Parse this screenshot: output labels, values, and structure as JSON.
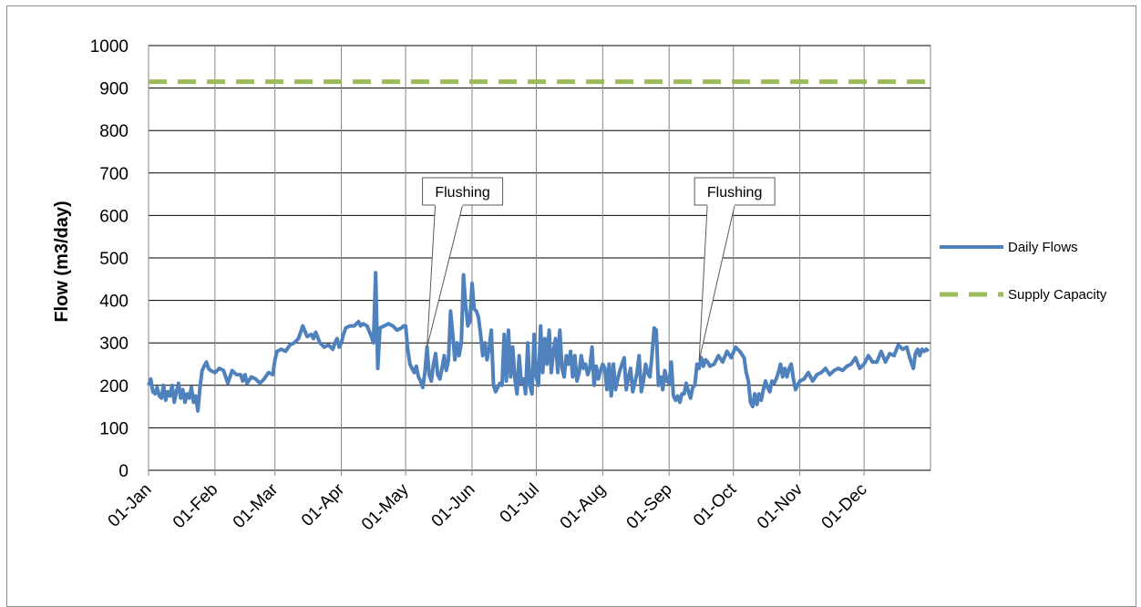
{
  "chart_data": {
    "type": "line",
    "title": "",
    "xlabel": "",
    "ylabel": "Flow (m3/day)",
    "ylim": [
      0,
      1000
    ],
    "yticks": [
      0,
      100,
      200,
      300,
      400,
      500,
      600,
      700,
      800,
      900,
      1000
    ],
    "xlim": [
      0,
      365
    ],
    "xticks": [
      {
        "day": 0,
        "label": "01-Jan"
      },
      {
        "day": 31,
        "label": "01-Feb"
      },
      {
        "day": 59,
        "label": "01-Mar"
      },
      {
        "day": 90,
        "label": "01-Apr"
      },
      {
        "day": 120,
        "label": "01-May"
      },
      {
        "day": 151,
        "label": "01-Jun"
      },
      {
        "day": 181,
        "label": "01-Jul"
      },
      {
        "day": 212,
        "label": "01-Aug"
      },
      {
        "day": 243,
        "label": "01-Sep"
      },
      {
        "day": 273,
        "label": "01-Oct"
      },
      {
        "day": 304,
        "label": "01-Nov"
      },
      {
        "day": 334,
        "label": "01-Dec"
      }
    ],
    "grid": true,
    "legend_position": "right",
    "series": [
      {
        "name": "Daily Flows",
        "color": "#4f81bd",
        "style": "solid",
        "points": [
          [
            0,
            200
          ],
          [
            1,
            215
          ],
          [
            2,
            185
          ],
          [
            3,
            180
          ],
          [
            4,
            195
          ],
          [
            5,
            175
          ],
          [
            6,
            170
          ],
          [
            7,
            200
          ],
          [
            8,
            165
          ],
          [
            9,
            185
          ],
          [
            10,
            175
          ],
          [
            11,
            200
          ],
          [
            12,
            160
          ],
          [
            13,
            185
          ],
          [
            14,
            205
          ],
          [
            15,
            170
          ],
          [
            16,
            190
          ],
          [
            17,
            160
          ],
          [
            18,
            180
          ],
          [
            19,
            170
          ],
          [
            20,
            195
          ],
          [
            21,
            160
          ],
          [
            22,
            175
          ],
          [
            23,
            140
          ],
          [
            24,
            195
          ],
          [
            25,
            235
          ],
          [
            26,
            245
          ],
          [
            27,
            255
          ],
          [
            28,
            240
          ],
          [
            29,
            235
          ],
          [
            31,
            230
          ],
          [
            33,
            240
          ],
          [
            35,
            235
          ],
          [
            37,
            205
          ],
          [
            39,
            235
          ],
          [
            41,
            225
          ],
          [
            43,
            225
          ],
          [
            44,
            210
          ],
          [
            45,
            225
          ],
          [
            46,
            205
          ],
          [
            48,
            220
          ],
          [
            50,
            215
          ],
          [
            52,
            205
          ],
          [
            54,
            215
          ],
          [
            56,
            230
          ],
          [
            58,
            225
          ],
          [
            59,
            260
          ],
          [
            60,
            280
          ],
          [
            62,
            285
          ],
          [
            64,
            280
          ],
          [
            66,
            295
          ],
          [
            68,
            300
          ],
          [
            70,
            310
          ],
          [
            72,
            340
          ],
          [
            74,
            315
          ],
          [
            76,
            320
          ],
          [
            77,
            310
          ],
          [
            78,
            325
          ],
          [
            80,
            300
          ],
          [
            82,
            290
          ],
          [
            84,
            295
          ],
          [
            86,
            285
          ],
          [
            87,
            300
          ],
          [
            88,
            310
          ],
          [
            89,
            290
          ],
          [
            90,
            300
          ],
          [
            91,
            320
          ],
          [
            92,
            335
          ],
          [
            94,
            340
          ],
          [
            96,
            340
          ],
          [
            98,
            350
          ],
          [
            99,
            340
          ],
          [
            100,
            345
          ],
          [
            102,
            340
          ],
          [
            104,
            315
          ],
          [
            105,
            300
          ],
          [
            106,
            465
          ],
          [
            107,
            240
          ],
          [
            108,
            335
          ],
          [
            110,
            340
          ],
          [
            112,
            345
          ],
          [
            114,
            340
          ],
          [
            116,
            330
          ],
          [
            118,
            335
          ],
          [
            119,
            340
          ],
          [
            120,
            340
          ],
          [
            121,
            285
          ],
          [
            122,
            250
          ],
          [
            123,
            240
          ],
          [
            124,
            230
          ],
          [
            125,
            245
          ],
          [
            126,
            220
          ],
          [
            127,
            210
          ],
          [
            128,
            195
          ],
          [
            129,
            230
          ],
          [
            130,
            290
          ],
          [
            131,
            225
          ],
          [
            132,
            210
          ],
          [
            133,
            250
          ],
          [
            134,
            275
          ],
          [
            135,
            225
          ],
          [
            136,
            215
          ],
          [
            137,
            240
          ],
          [
            138,
            270
          ],
          [
            139,
            235
          ],
          [
            140,
            260
          ],
          [
            141,
            375
          ],
          [
            142,
            320
          ],
          [
            143,
            260
          ],
          [
            144,
            300
          ],
          [
            145,
            270
          ],
          [
            146,
            300
          ],
          [
            147,
            460
          ],
          [
            148,
            390
          ],
          [
            149,
            340
          ],
          [
            150,
            350
          ],
          [
            151,
            440
          ],
          [
            152,
            380
          ],
          [
            153,
            375
          ],
          [
            154,
            360
          ],
          [
            155,
            320
          ],
          [
            156,
            270
          ],
          [
            157,
            300
          ],
          [
            158,
            260
          ],
          [
            159,
            290
          ],
          [
            160,
            330
          ],
          [
            161,
            200
          ],
          [
            162,
            185
          ],
          [
            163,
            195
          ],
          [
            164,
            205
          ],
          [
            165,
            200
          ],
          [
            166,
            320
          ],
          [
            167,
            210
          ],
          [
            168,
            330
          ],
          [
            169,
            220
          ],
          [
            170,
            290
          ],
          [
            171,
            215
          ],
          [
            172,
            180
          ],
          [
            173,
            270
          ],
          [
            174,
            205
          ],
          [
            175,
            215
          ],
          [
            176,
            180
          ],
          [
            177,
            300
          ],
          [
            178,
            200
          ],
          [
            179,
            180
          ],
          [
            180,
            320
          ],
          [
            181,
            220
          ],
          [
            182,
            200
          ],
          [
            183,
            340
          ],
          [
            184,
            230
          ],
          [
            185,
            310
          ],
          [
            186,
            250
          ],
          [
            187,
            330
          ],
          [
            188,
            230
          ],
          [
            189,
            280
          ],
          [
            190,
            310
          ],
          [
            191,
            230
          ],
          [
            192,
            330
          ],
          [
            193,
            240
          ],
          [
            194,
            220
          ],
          [
            195,
            270
          ],
          [
            196,
            250
          ],
          [
            197,
            280
          ],
          [
            198,
            220
          ],
          [
            199,
            270
          ],
          [
            200,
            210
          ],
          [
            201,
            230
          ],
          [
            202,
            270
          ],
          [
            203,
            240
          ],
          [
            204,
            250
          ],
          [
            205,
            225
          ],
          [
            206,
            240
          ],
          [
            207,
            290
          ],
          [
            208,
            200
          ],
          [
            209,
            245
          ],
          [
            210,
            215
          ],
          [
            211,
            235
          ],
          [
            212,
            250
          ],
          [
            213,
            240
          ],
          [
            214,
            190
          ],
          [
            215,
            250
          ],
          [
            216,
            175
          ],
          [
            217,
            250
          ],
          [
            218,
            190
          ],
          [
            219,
            215
          ],
          [
            220,
            235
          ],
          [
            221,
            250
          ],
          [
            222,
            265
          ],
          [
            223,
            190
          ],
          [
            224,
            220
          ],
          [
            225,
            240
          ],
          [
            226,
            185
          ],
          [
            227,
            205
          ],
          [
            228,
            230
          ],
          [
            229,
            270
          ],
          [
            230,
            185
          ],
          [
            231,
            210
          ],
          [
            232,
            250
          ],
          [
            233,
            230
          ],
          [
            234,
            220
          ],
          [
            235,
            270
          ],
          [
            236,
            335
          ],
          [
            237,
            330
          ],
          [
            238,
            200
          ],
          [
            239,
            220
          ],
          [
            240,
            190
          ],
          [
            241,
            235
          ],
          [
            242,
            210
          ],
          [
            243,
            205
          ],
          [
            244,
            255
          ],
          [
            245,
            175
          ],
          [
            246,
            165
          ],
          [
            247,
            175
          ],
          [
            248,
            160
          ],
          [
            249,
            180
          ],
          [
            250,
            180
          ],
          [
            251,
            205
          ],
          [
            252,
            185
          ],
          [
            253,
            170
          ],
          [
            254,
            195
          ],
          [
            255,
            200
          ],
          [
            256,
            250
          ],
          [
            257,
            240
          ],
          [
            258,
            265
          ],
          [
            259,
            245
          ],
          [
            260,
            260
          ],
          [
            261,
            255
          ],
          [
            262,
            245
          ],
          [
            264,
            250
          ],
          [
            266,
            270
          ],
          [
            268,
            255
          ],
          [
            270,
            280
          ],
          [
            272,
            265
          ],
          [
            274,
            290
          ],
          [
            276,
            280
          ],
          [
            278,
            265
          ],
          [
            279,
            230
          ],
          [
            280,
            210
          ],
          [
            281,
            160
          ],
          [
            282,
            150
          ],
          [
            283,
            180
          ],
          [
            284,
            155
          ],
          [
            285,
            180
          ],
          [
            286,
            165
          ],
          [
            287,
            190
          ],
          [
            288,
            210
          ],
          [
            289,
            195
          ],
          [
            290,
            185
          ],
          [
            291,
            210
          ],
          [
            292,
            205
          ],
          [
            293,
            215
          ],
          [
            294,
            230
          ],
          [
            295,
            250
          ],
          [
            296,
            220
          ],
          [
            297,
            240
          ],
          [
            298,
            220
          ],
          [
            299,
            240
          ],
          [
            300,
            250
          ],
          [
            301,
            215
          ],
          [
            302,
            190
          ],
          [
            304,
            210
          ],
          [
            306,
            215
          ],
          [
            308,
            230
          ],
          [
            310,
            210
          ],
          [
            312,
            225
          ],
          [
            314,
            230
          ],
          [
            316,
            240
          ],
          [
            318,
            225
          ],
          [
            320,
            235
          ],
          [
            322,
            240
          ],
          [
            324,
            235
          ],
          [
            326,
            245
          ],
          [
            328,
            250
          ],
          [
            330,
            265
          ],
          [
            332,
            240
          ],
          [
            334,
            250
          ],
          [
            336,
            270
          ],
          [
            338,
            255
          ],
          [
            340,
            255
          ],
          [
            342,
            280
          ],
          [
            344,
            255
          ],
          [
            346,
            275
          ],
          [
            348,
            270
          ],
          [
            350,
            295
          ],
          [
            352,
            285
          ],
          [
            354,
            290
          ],
          [
            355,
            270
          ],
          [
            356,
            255
          ],
          [
            357,
            240
          ],
          [
            358,
            275
          ],
          [
            359,
            285
          ],
          [
            360,
            270
          ],
          [
            361,
            285
          ],
          [
            362,
            280
          ],
          [
            363,
            285
          ],
          [
            364,
            280
          ]
        ]
      },
      {
        "name": "Supply Capacity",
        "color": "#9bbb59",
        "style": "dashed",
        "points": [
          [
            0,
            915
          ],
          [
            364,
            915
          ]
        ]
      }
    ],
    "annotations": [
      {
        "text": "Flushing",
        "day": 130,
        "value": 290
      },
      {
        "text": "Flushing",
        "day": 257,
        "value": 258
      }
    ]
  }
}
